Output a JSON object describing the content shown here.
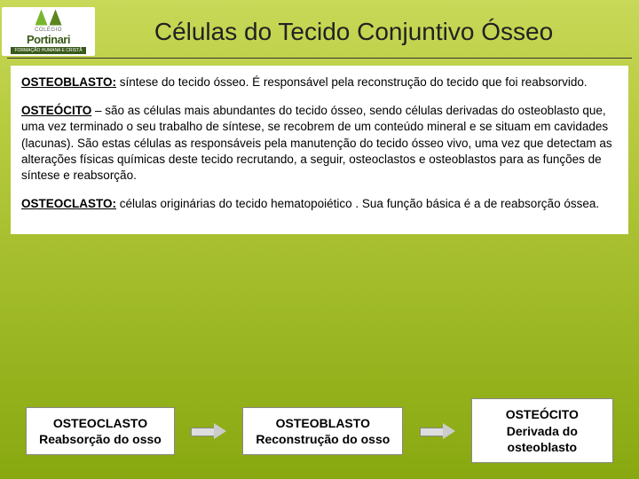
{
  "logo": {
    "line1": "COLÉGIO",
    "line2": "Portinari",
    "tag": "FORMAÇÃO HUMANA E CRISTÃ"
  },
  "title": "Células do Tecido Conjuntivo Ósseo",
  "sections": {
    "osteoblasto": {
      "label": "OSTEOBLASTO:",
      "text": " síntese do tecido ósseo. É responsável pela reconstrução do tecido que foi reabsorvido."
    },
    "osteocito": {
      "label": "OSTEÓCITO",
      "text": " – são as células mais abundantes do tecido ósseo, sendo células derivadas do osteoblasto que, uma vez terminado o seu trabalho de síntese, se recobrem de um conteúdo mineral e se situam em cavidades (lacunas). São estas células as responsáveis pela manutenção do tecido ósseo vivo, uma vez que detectam as alterações físicas químicas deste tecido recrutando, a seguir, osteoclastos e osteoblastos para as funções de síntese e reabsorção."
    },
    "osteoclasto": {
      "label": "OSTEOCLASTO:",
      "text": "  células originárias do tecido hematopoiético . Sua função básica é a de reabsorção óssea."
    }
  },
  "boxes": {
    "b1": {
      "line1": "OSTEOCLASTO",
      "line2": "Reabsorção do osso"
    },
    "b2": {
      "line1": "OSTEOBLASTO",
      "line2": "Reconstrução do osso"
    },
    "b3": {
      "line1": "OSTEÓCITO",
      "line2": "Derivada do",
      "line3": "osteoblasto"
    }
  },
  "colors": {
    "bg_top": "#c8d858",
    "bg_bottom": "#88a810",
    "content_bg": "#ffffff",
    "text": "#000000"
  }
}
